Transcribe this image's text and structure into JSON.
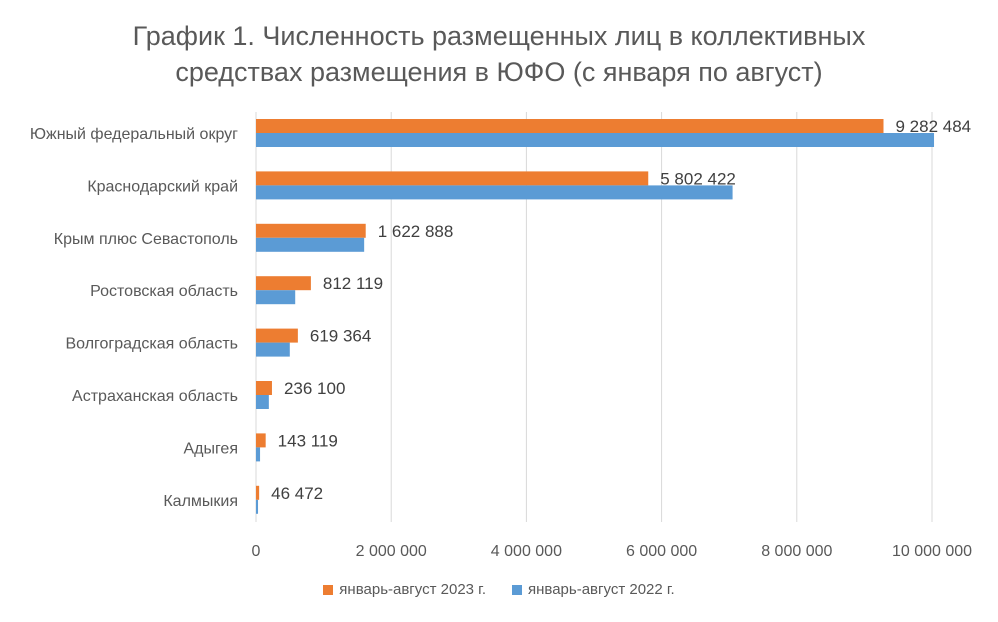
{
  "chart_data": {
    "type": "bar",
    "orientation": "horizontal",
    "title_lines": [
      "График 1. Численность размещенных лиц в коллективных",
      "средствах размещения в ЮФО (с января по август)"
    ],
    "categories": [
      "Южный федеральный округ",
      "Краснодарский край",
      "Крым плюс Севастополь",
      "Ростовская область",
      "Волгоградская область",
      "Астраханская область",
      "Адыгея",
      "Калмыкия"
    ],
    "series": [
      {
        "name": "январь-август 2023 г.",
        "color": "#ED7D31",
        "values": [
          9282484,
          5802422,
          1622888,
          812119,
          619364,
          236100,
          143119,
          46472
        ],
        "data_labels": [
          "9 282 484",
          "5 802 422",
          "1 622 888",
          "812 119",
          "619 364",
          "236 100",
          "143 119",
          "46 472"
        ]
      },
      {
        "name": "январь-август 2022 г.",
        "color": "#5B9BD5",
        "values": [
          10030000,
          7050000,
          1600000,
          580000,
          500000,
          190000,
          60000,
          30000
        ]
      }
    ],
    "xlim": [
      0,
      10000000
    ],
    "x_ticks": [
      "0",
      "2 000 000",
      "4 000 000",
      "6 000 000",
      "8 000 000",
      "10 000 000"
    ],
    "x_tick_values": [
      0,
      2000000,
      4000000,
      6000000,
      8000000,
      10000000
    ],
    "grid": "vertical",
    "legend_position": "bottom"
  }
}
